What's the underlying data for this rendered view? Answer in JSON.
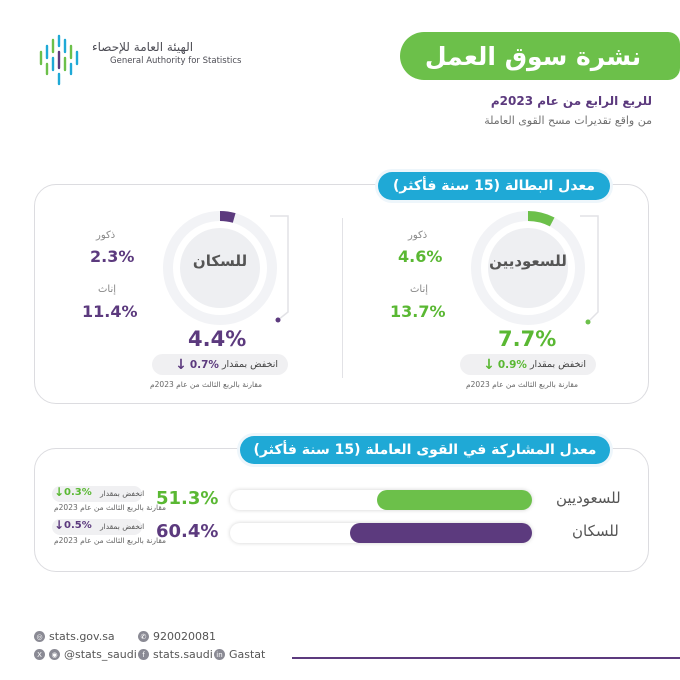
{
  "logo": {
    "name_ar": "الهيئة العامة للإحصاء",
    "name_en": "General Authority for Statistics"
  },
  "header": {
    "title": "نشرة سوق العمل",
    "subtitle": "للربع الرابع من عام 2023م",
    "source": "من واقع تقديرات مسح القوى العاملة"
  },
  "unemployment": {
    "title": "معدل البطالة (15 سنة فأكثر)",
    "saudis": {
      "ring_label": "للسعوديين",
      "male_label": "ذكور",
      "male_value": "4.6%",
      "female_label": "إناث",
      "female_value": "13.7%",
      "total": "7.7%",
      "total_fraction": 0.077,
      "decrease_label": "انخفض بمقدار",
      "decrease_value": "0.9%",
      "comparison": "مقارنة بالربع الثالث من عام 2023م"
    },
    "population": {
      "ring_label": "للسكان",
      "male_label": "ذكور",
      "male_value": "2.3%",
      "female_label": "إناث",
      "female_value": "11.4%",
      "total": "4.4%",
      "total_fraction": 0.044,
      "decrease_label": "انخفض بمقدار",
      "decrease_value": "0.7%",
      "comparison": "مقارنة بالربع الثالث من عام 2023م"
    }
  },
  "participation": {
    "title": "معدل المشاركة في القوى العاملة (15 سنة فأكثر)",
    "rows": [
      {
        "label": "للسعوديين",
        "value": "51.3%",
        "fraction": 0.513,
        "decrease_label": "انخفض بمقدار",
        "decrease_value": "0.3%",
        "comparison": "مقارنة بالربع الثالث من عام 2023م"
      },
      {
        "label": "للسكان",
        "value": "60.4%",
        "fraction": 0.604,
        "decrease_label": "انخفض بمقدار",
        "decrease_value": "0.5%",
        "comparison": "مقارنة بالربع الثالث من عام 2023م"
      }
    ]
  },
  "footer": {
    "website": "stats.gov.sa",
    "phone": "920020081",
    "twitter": "@stats_saudi",
    "facebook": "stats.saudi",
    "linkedin": "Gastat"
  },
  "colors": {
    "green": "#6cc04a",
    "purple": "#5c3a7e",
    "blue": "#1fa9d6"
  },
  "icons": [
    "down-arrow-icon",
    "globe-icon",
    "phone-icon",
    "x-icon",
    "instagram-icon",
    "facebook-icon",
    "linkedin-icon"
  ]
}
